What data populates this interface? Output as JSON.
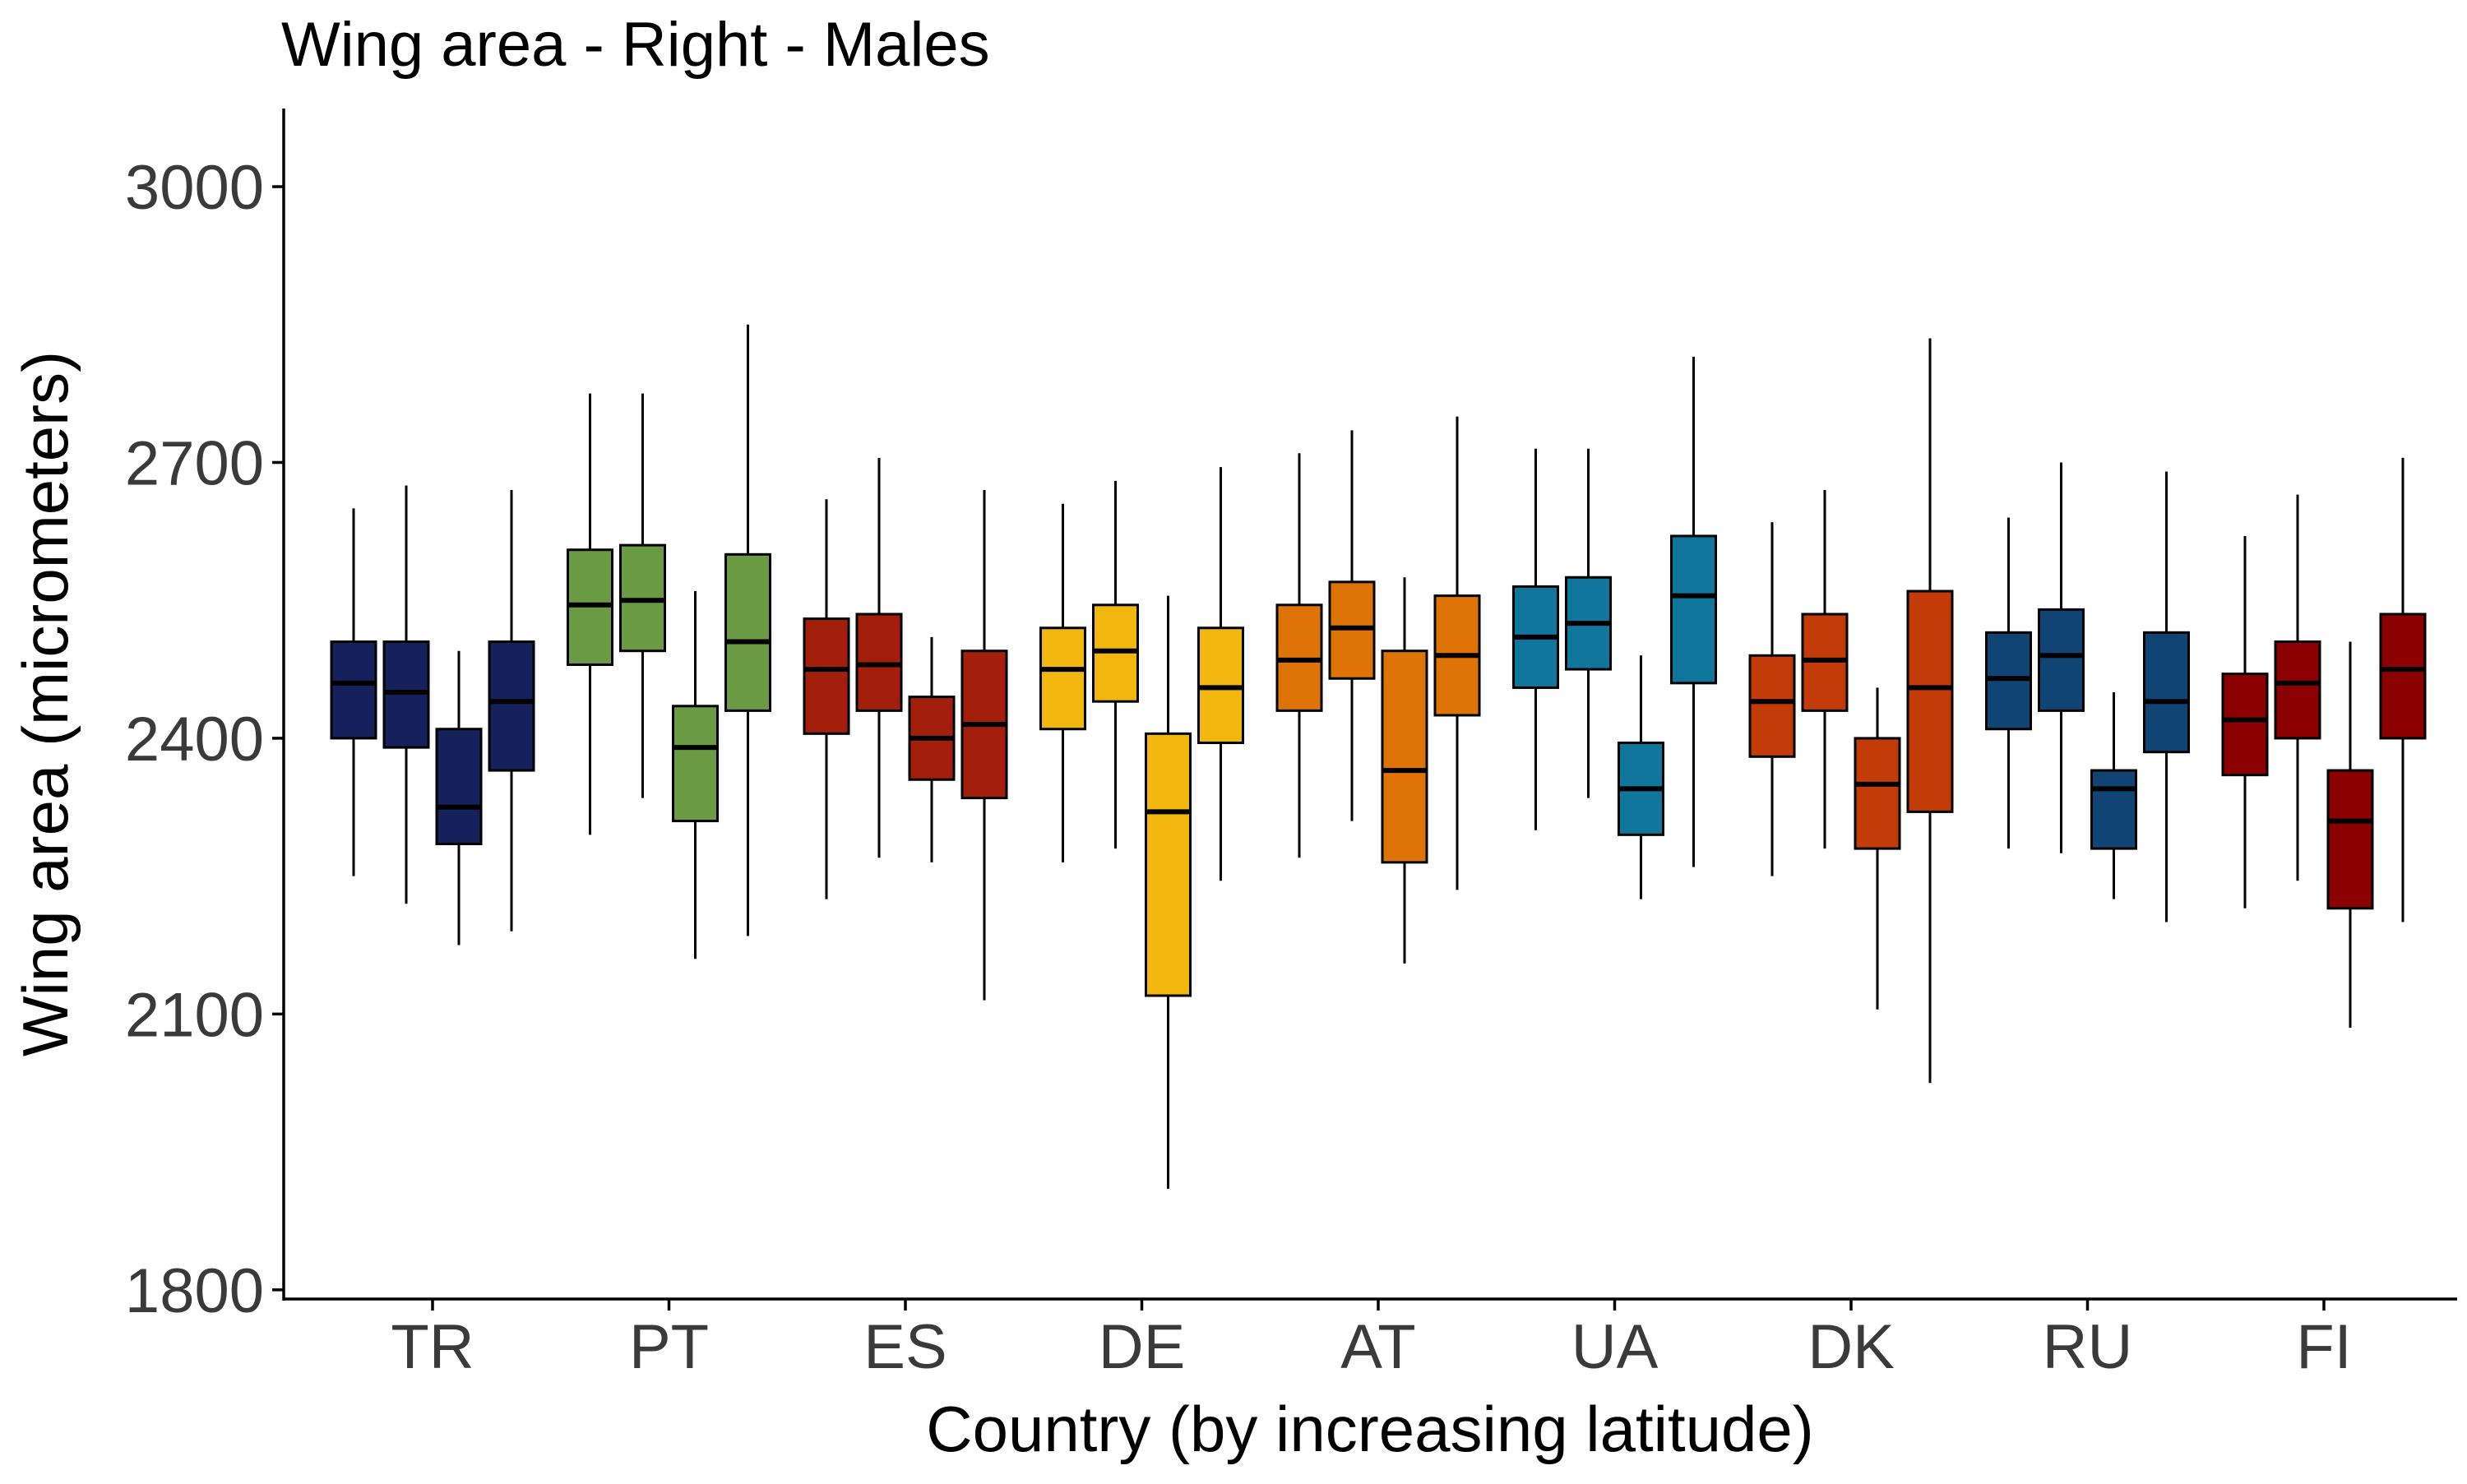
{
  "chart_data": {
    "type": "box",
    "title": "Wing area - Right - Males",
    "xlabel": "Country (by increasing latitude)",
    "ylabel": "Wing area (micrometers)",
    "ylim": [
      1790,
      3085
    ],
    "yticks": [
      1800,
      2100,
      2400,
      2700,
      3000
    ],
    "grid": false,
    "categories": [
      "TR",
      "PT",
      "ES",
      "DE",
      "AT",
      "UA",
      "DK",
      "RU",
      "FI"
    ],
    "colors": {
      "TR": "#14215a",
      "PT": "#6a9a44",
      "ES": "#a41f0b",
      "DE": "#f2b70f",
      "AT": "#de7408",
      "UA": "#10769c",
      "DK": "#c23b08",
      "RU": "#0f4475",
      "FI": "#8c0003"
    },
    "boxes": [
      {
        "country": "TR",
        "min": 2250,
        "q1": 2400,
        "median": 2460,
        "q3": 2505,
        "max": 2650
      },
      {
        "country": "TR",
        "min": 2220,
        "q1": 2390,
        "median": 2450,
        "q3": 2505,
        "max": 2675
      },
      {
        "country": "TR",
        "min": 2175,
        "q1": 2285,
        "median": 2325,
        "q3": 2410,
        "max": 2495
      },
      {
        "country": "TR",
        "min": 2190,
        "q1": 2365,
        "median": 2440,
        "q3": 2505,
        "max": 2670
      },
      {
        "country": "PT",
        "min": 2295,
        "q1": 2480,
        "median": 2545,
        "q3": 2605,
        "max": 2775
      },
      {
        "country": "PT",
        "min": 2335,
        "q1": 2495,
        "median": 2550,
        "q3": 2610,
        "max": 2775
      },
      {
        "country": "PT",
        "min": 2160,
        "q1": 2310,
        "median": 2390,
        "q3": 2435,
        "max": 2560
      },
      {
        "country": "PT",
        "min": 2185,
        "q1": 2430,
        "median": 2505,
        "q3": 2600,
        "max": 2850
      },
      {
        "country": "ES",
        "min": 2225,
        "q1": 2405,
        "median": 2475,
        "q3": 2530,
        "max": 2660
      },
      {
        "country": "ES",
        "min": 2270,
        "q1": 2430,
        "median": 2480,
        "q3": 2535,
        "max": 2705
      },
      {
        "country": "ES",
        "min": 2265,
        "q1": 2355,
        "median": 2400,
        "q3": 2445,
        "max": 2510
      },
      {
        "country": "ES",
        "min": 2115,
        "q1": 2335,
        "median": 2415,
        "q3": 2495,
        "max": 2670
      },
      {
        "country": "DE",
        "min": 2265,
        "q1": 2410,
        "median": 2475,
        "q3": 2520,
        "max": 2655
      },
      {
        "country": "DE",
        "min": 2280,
        "q1": 2440,
        "median": 2495,
        "q3": 2545,
        "max": 2680
      },
      {
        "country": "DE",
        "min": 1910,
        "q1": 2120,
        "median": 2320,
        "q3": 2405,
        "max": 2555
      },
      {
        "country": "DE",
        "min": 2245,
        "q1": 2395,
        "median": 2455,
        "q3": 2520,
        "max": 2695
      },
      {
        "country": "AT",
        "min": 2270,
        "q1": 2430,
        "median": 2485,
        "q3": 2545,
        "max": 2710
      },
      {
        "country": "AT",
        "min": 2310,
        "q1": 2465,
        "median": 2520,
        "q3": 2570,
        "max": 2735
      },
      {
        "country": "AT",
        "min": 2155,
        "q1": 2265,
        "median": 2365,
        "q3": 2495,
        "max": 2575
      },
      {
        "country": "AT",
        "min": 2235,
        "q1": 2425,
        "median": 2490,
        "q3": 2555,
        "max": 2750
      },
      {
        "country": "UA",
        "min": 2300,
        "q1": 2455,
        "median": 2510,
        "q3": 2565,
        "max": 2715
      },
      {
        "country": "UA",
        "min": 2335,
        "q1": 2475,
        "median": 2525,
        "q3": 2575,
        "max": 2715
      },
      {
        "country": "UA",
        "min": 2225,
        "q1": 2295,
        "median": 2345,
        "q3": 2395,
        "max": 2490
      },
      {
        "country": "UA",
        "min": 2260,
        "q1": 2460,
        "median": 2555,
        "q3": 2620,
        "max": 2815
      },
      {
        "country": "DK",
        "min": 2250,
        "q1": 2380,
        "median": 2440,
        "q3": 2490,
        "max": 2635
      },
      {
        "country": "DK",
        "min": 2280,
        "q1": 2430,
        "median": 2485,
        "q3": 2535,
        "max": 2670
      },
      {
        "country": "DK",
        "min": 2105,
        "q1": 2280,
        "median": 2350,
        "q3": 2400,
        "max": 2455
      },
      {
        "country": "DK",
        "min": 2025,
        "q1": 2320,
        "median": 2455,
        "q3": 2560,
        "max": 2835
      },
      {
        "country": "RU",
        "min": 2280,
        "q1": 2410,
        "median": 2465,
        "q3": 2515,
        "max": 2640
      },
      {
        "country": "RU",
        "min": 2275,
        "q1": 2430,
        "median": 2490,
        "q3": 2540,
        "max": 2700
      },
      {
        "country": "RU",
        "min": 2225,
        "q1": 2280,
        "median": 2345,
        "q3": 2365,
        "max": 2450
      },
      {
        "country": "RU",
        "min": 2200,
        "q1": 2385,
        "median": 2440,
        "q3": 2515,
        "max": 2690
      },
      {
        "country": "FI",
        "min": 2215,
        "q1": 2360,
        "median": 2420,
        "q3": 2470,
        "max": 2620
      },
      {
        "country": "FI",
        "min": 2245,
        "q1": 2400,
        "median": 2460,
        "q3": 2505,
        "max": 2665
      },
      {
        "country": "FI",
        "min": 2085,
        "q1": 2215,
        "median": 2310,
        "q3": 2365,
        "max": 2505
      },
      {
        "country": "FI",
        "min": 2200,
        "q1": 2400,
        "median": 2475,
        "q3": 2535,
        "max": 2705
      }
    ]
  }
}
